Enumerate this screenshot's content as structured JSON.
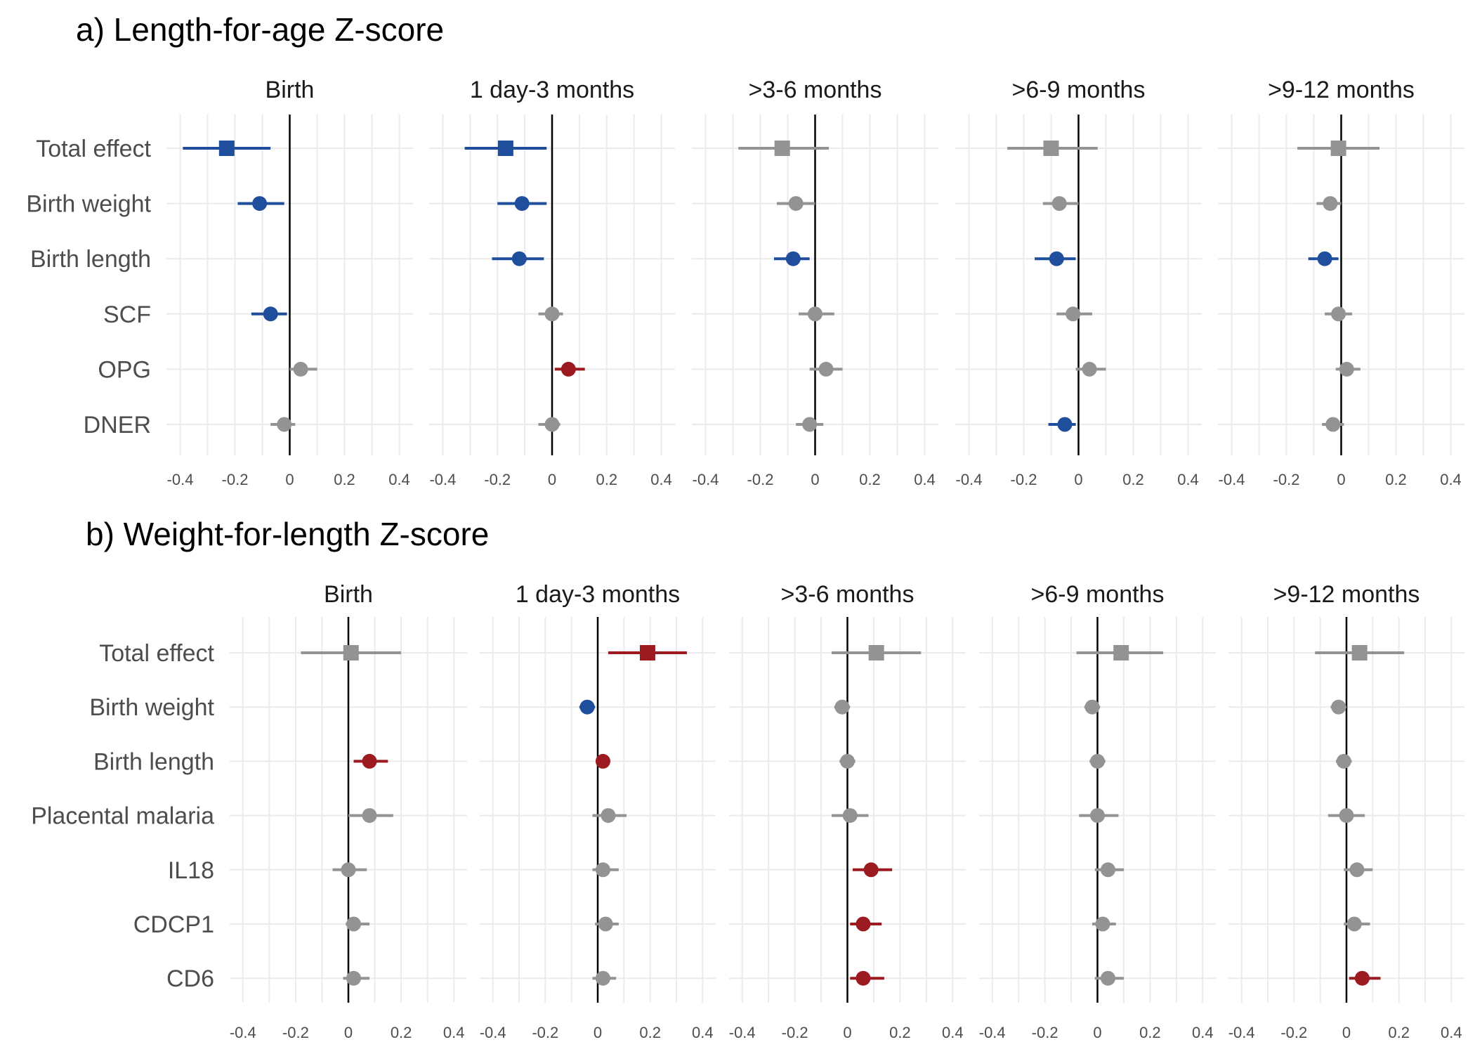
{
  "colors": {
    "significant_negative": "#1f4e9c",
    "significant_positive": "#9b1b21",
    "not_significant": "#939393",
    "grid": "#ebebeb",
    "zero_line": "#000000"
  },
  "chart_data": [
    {
      "type": "forest",
      "title": "a) Length-for-age Z-score",
      "xlim": [
        -0.45,
        0.45
      ],
      "x_ticks": [
        "-0.4",
        "-0.2",
        "0",
        "0.2",
        "0.4"
      ],
      "rows": [
        "Total effect",
        "Birth weight",
        "Birth length",
        "SCF",
        "OPG",
        "DNER"
      ],
      "facets": [
        {
          "name": "Birth",
          "points": [
            {
              "row": "Total effect",
              "est": -0.23,
              "lo": -0.39,
              "hi": -0.07,
              "color": "blue"
            },
            {
              "row": "Birth weight",
              "est": -0.11,
              "lo": -0.19,
              "hi": -0.02,
              "color": "blue"
            },
            {
              "row": "Birth length",
              "est": null,
              "lo": null,
              "hi": null,
              "color": "grey"
            },
            {
              "row": "SCF",
              "est": -0.07,
              "lo": -0.14,
              "hi": -0.01,
              "color": "blue"
            },
            {
              "row": "OPG",
              "est": 0.04,
              "lo": 0.0,
              "hi": 0.1,
              "color": "grey"
            },
            {
              "row": "DNER",
              "est": -0.02,
              "lo": -0.07,
              "hi": 0.02,
              "color": "grey"
            }
          ]
        },
        {
          "name": "1 day-3 months",
          "points": [
            {
              "row": "Total effect",
              "est": -0.17,
              "lo": -0.32,
              "hi": -0.02,
              "color": "blue"
            },
            {
              "row": "Birth weight",
              "est": -0.11,
              "lo": -0.2,
              "hi": -0.02,
              "color": "blue"
            },
            {
              "row": "Birth length",
              "est": -0.12,
              "lo": -0.22,
              "hi": -0.03,
              "color": "blue"
            },
            {
              "row": "SCF",
              "est": 0.0,
              "lo": -0.05,
              "hi": 0.04,
              "color": "grey"
            },
            {
              "row": "OPG",
              "est": 0.06,
              "lo": 0.01,
              "hi": 0.12,
              "color": "red"
            },
            {
              "row": "DNER",
              "est": 0.0,
              "lo": -0.05,
              "hi": 0.03,
              "color": "grey"
            }
          ]
        },
        {
          "name": ">3-6 months",
          "points": [
            {
              "row": "Total effect",
              "est": -0.12,
              "lo": -0.28,
              "hi": 0.05,
              "color": "grey"
            },
            {
              "row": "Birth weight",
              "est": -0.07,
              "lo": -0.14,
              "hi": 0.0,
              "color": "grey"
            },
            {
              "row": "Birth length",
              "est": -0.08,
              "lo": -0.15,
              "hi": -0.02,
              "color": "blue"
            },
            {
              "row": "SCF",
              "est": 0.0,
              "lo": -0.06,
              "hi": 0.07,
              "color": "grey"
            },
            {
              "row": "OPG",
              "est": 0.04,
              "lo": -0.02,
              "hi": 0.1,
              "color": "grey"
            },
            {
              "row": "DNER",
              "est": -0.02,
              "lo": -0.07,
              "hi": 0.03,
              "color": "grey"
            }
          ]
        },
        {
          "name": ">6-9 months",
          "points": [
            {
              "row": "Total effect",
              "est": -0.1,
              "lo": -0.26,
              "hi": 0.07,
              "color": "grey"
            },
            {
              "row": "Birth weight",
              "est": -0.07,
              "lo": -0.13,
              "hi": 0.0,
              "color": "grey"
            },
            {
              "row": "Birth length",
              "est": -0.08,
              "lo": -0.16,
              "hi": -0.01,
              "color": "blue"
            },
            {
              "row": "SCF",
              "est": -0.02,
              "lo": -0.08,
              "hi": 0.05,
              "color": "grey"
            },
            {
              "row": "OPG",
              "est": 0.04,
              "lo": -0.01,
              "hi": 0.1,
              "color": "grey"
            },
            {
              "row": "DNER",
              "est": -0.05,
              "lo": -0.11,
              "hi": -0.01,
              "color": "blue"
            }
          ]
        },
        {
          "name": ">9-12 months",
          "points": [
            {
              "row": "Total effect",
              "est": -0.01,
              "lo": -0.16,
              "hi": 0.14,
              "color": "grey"
            },
            {
              "row": "Birth weight",
              "est": -0.04,
              "lo": -0.09,
              "hi": 0.0,
              "color": "grey"
            },
            {
              "row": "Birth length",
              "est": -0.06,
              "lo": -0.12,
              "hi": -0.01,
              "color": "blue"
            },
            {
              "row": "SCF",
              "est": -0.01,
              "lo": -0.06,
              "hi": 0.04,
              "color": "grey"
            },
            {
              "row": "OPG",
              "est": 0.02,
              "lo": -0.02,
              "hi": 0.07,
              "color": "grey"
            },
            {
              "row": "DNER",
              "est": -0.03,
              "lo": -0.07,
              "hi": 0.01,
              "color": "grey"
            }
          ]
        }
      ]
    },
    {
      "type": "forest",
      "title": "b) Weight-for-length Z-score",
      "xlim": [
        -0.45,
        0.45
      ],
      "x_ticks": [
        "-0.4",
        "-0.2",
        "0",
        "0.2",
        "0.4"
      ],
      "rows": [
        "Total effect",
        "Birth weight",
        "Birth length",
        "Placental malaria",
        "IL18",
        "CDCP1",
        "CD6"
      ],
      "facets": [
        {
          "name": "Birth",
          "points": [
            {
              "row": "Total effect",
              "est": 0.01,
              "lo": -0.18,
              "hi": 0.2,
              "color": "grey"
            },
            {
              "row": "Birth weight",
              "est": null,
              "lo": null,
              "hi": null,
              "color": "grey"
            },
            {
              "row": "Birth length",
              "est": 0.08,
              "lo": 0.02,
              "hi": 0.15,
              "color": "red"
            },
            {
              "row": "Placental malaria",
              "est": 0.08,
              "lo": 0.0,
              "hi": 0.17,
              "color": "grey"
            },
            {
              "row": "IL18",
              "est": 0.0,
              "lo": -0.06,
              "hi": 0.07,
              "color": "grey"
            },
            {
              "row": "CDCP1",
              "est": 0.02,
              "lo": -0.01,
              "hi": 0.08,
              "color": "grey"
            },
            {
              "row": "CD6",
              "est": 0.02,
              "lo": -0.02,
              "hi": 0.08,
              "color": "grey"
            }
          ]
        },
        {
          "name": "1 day-3 months",
          "points": [
            {
              "row": "Total effect",
              "est": 0.19,
              "lo": 0.04,
              "hi": 0.34,
              "color": "red"
            },
            {
              "row": "Birth weight",
              "est": -0.04,
              "lo": -0.07,
              "hi": -0.01,
              "color": "blue"
            },
            {
              "row": "Birth length",
              "est": 0.02,
              "lo": 0.0,
              "hi": 0.04,
              "color": "red"
            },
            {
              "row": "Placental malaria",
              "est": 0.04,
              "lo": -0.02,
              "hi": 0.11,
              "color": "grey"
            },
            {
              "row": "IL18",
              "est": 0.02,
              "lo": -0.02,
              "hi": 0.08,
              "color": "grey"
            },
            {
              "row": "CDCP1",
              "est": 0.03,
              "lo": -0.01,
              "hi": 0.08,
              "color": "grey"
            },
            {
              "row": "CD6",
              "est": 0.02,
              "lo": -0.02,
              "hi": 0.07,
              "color": "grey"
            }
          ]
        },
        {
          "name": ">3-6 months",
          "points": [
            {
              "row": "Total effect",
              "est": 0.11,
              "lo": -0.06,
              "hi": 0.28,
              "color": "grey"
            },
            {
              "row": "Birth weight",
              "est": -0.02,
              "lo": -0.05,
              "hi": 0.01,
              "color": "grey"
            },
            {
              "row": "Birth length",
              "est": 0.0,
              "lo": -0.03,
              "hi": 0.03,
              "color": "grey"
            },
            {
              "row": "Placental malaria",
              "est": 0.01,
              "lo": -0.06,
              "hi": 0.08,
              "color": "grey"
            },
            {
              "row": "IL18",
              "est": 0.09,
              "lo": 0.02,
              "hi": 0.17,
              "color": "red"
            },
            {
              "row": "CDCP1",
              "est": 0.06,
              "lo": 0.01,
              "hi": 0.13,
              "color": "red"
            },
            {
              "row": "CD6",
              "est": 0.06,
              "lo": 0.01,
              "hi": 0.14,
              "color": "red"
            }
          ]
        },
        {
          "name": ">6-9 months",
          "points": [
            {
              "row": "Total effect",
              "est": 0.09,
              "lo": -0.08,
              "hi": 0.25,
              "color": "grey"
            },
            {
              "row": "Birth weight",
              "est": -0.02,
              "lo": -0.05,
              "hi": 0.01,
              "color": "grey"
            },
            {
              "row": "Birth length",
              "est": 0.0,
              "lo": -0.03,
              "hi": 0.03,
              "color": "grey"
            },
            {
              "row": "Placental malaria",
              "est": 0.0,
              "lo": -0.07,
              "hi": 0.08,
              "color": "grey"
            },
            {
              "row": "IL18",
              "est": 0.04,
              "lo": -0.01,
              "hi": 0.1,
              "color": "grey"
            },
            {
              "row": "CDCP1",
              "est": 0.02,
              "lo": -0.02,
              "hi": 0.07,
              "color": "grey"
            },
            {
              "row": "CD6",
              "est": 0.04,
              "lo": -0.01,
              "hi": 0.1,
              "color": "grey"
            }
          ]
        },
        {
          "name": ">9-12 months",
          "points": [
            {
              "row": "Total effect",
              "est": 0.05,
              "lo": -0.12,
              "hi": 0.22,
              "color": "grey"
            },
            {
              "row": "Birth weight",
              "est": -0.03,
              "lo": -0.06,
              "hi": 0.0,
              "color": "grey"
            },
            {
              "row": "Birth length",
              "est": -0.01,
              "lo": -0.04,
              "hi": 0.02,
              "color": "grey"
            },
            {
              "row": "Placental malaria",
              "est": 0.0,
              "lo": -0.07,
              "hi": 0.07,
              "color": "grey"
            },
            {
              "row": "IL18",
              "est": 0.04,
              "lo": -0.01,
              "hi": 0.1,
              "color": "grey"
            },
            {
              "row": "CDCP1",
              "est": 0.03,
              "lo": -0.01,
              "hi": 0.09,
              "color": "grey"
            },
            {
              "row": "CD6",
              "est": 0.06,
              "lo": 0.01,
              "hi": 0.13,
              "color": "red"
            }
          ]
        }
      ]
    }
  ]
}
